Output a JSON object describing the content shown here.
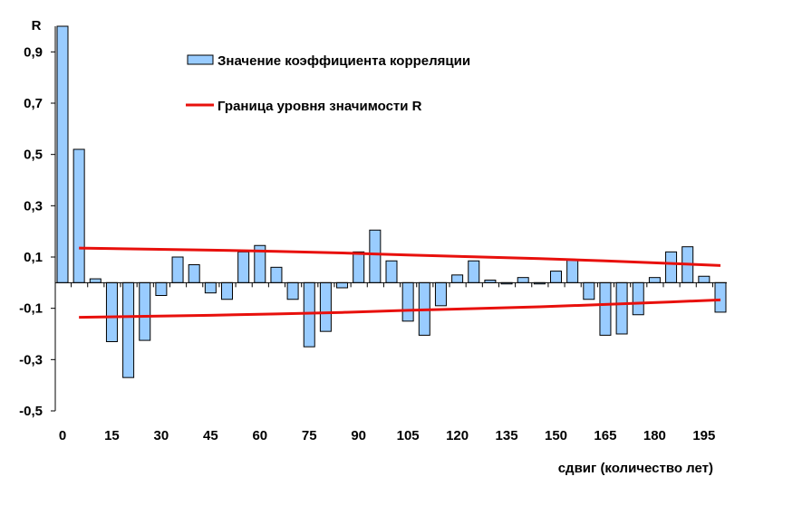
{
  "chart_data": {
    "type": "bar",
    "ylabel": "R",
    "xlabel": "сдвиг (количество лет)",
    "ylim": [
      -0.5,
      1.0
    ],
    "y_ticks": [
      {
        "value": 0.9,
        "label": "0,9"
      },
      {
        "value": 0.7,
        "label": "0,7"
      },
      {
        "value": 0.5,
        "label": "0,5"
      },
      {
        "value": 0.3,
        "label": "0,3"
      },
      {
        "value": 0.1,
        "label": "0,1"
      },
      {
        "value": -0.1,
        "label": "-0,1"
      },
      {
        "value": -0.3,
        "label": "-0,3"
      },
      {
        "value": -0.5,
        "label": "-0,5"
      }
    ],
    "x_ticks": [
      "0",
      "15",
      "30",
      "45",
      "60",
      "75",
      "90",
      "105",
      "120",
      "135",
      "150",
      "165",
      "180",
      "195"
    ],
    "x_step": 5,
    "grid": false,
    "legend_placement": "top-center",
    "bar_series": {
      "name": "Значение коэффициента корреляции",
      "color": "#99ccff",
      "stroke": "#000000",
      "x": [
        0,
        5,
        10,
        15,
        20,
        25,
        30,
        35,
        40,
        45,
        50,
        55,
        60,
        65,
        70,
        75,
        80,
        85,
        90,
        95,
        100,
        105,
        110,
        115,
        120,
        125,
        130,
        135,
        140,
        145,
        150,
        155,
        160,
        165,
        170,
        175,
        180,
        185,
        190,
        195,
        200
      ],
      "values": [
        1.0,
        0.52,
        0.015,
        -0.23,
        -0.37,
        -0.225,
        -0.05,
        0.1,
        0.07,
        -0.04,
        -0.065,
        0.12,
        0.145,
        0.06,
        -0.065,
        -0.25,
        -0.19,
        -0.02,
        0.12,
        0.205,
        0.085,
        -0.15,
        -0.205,
        -0.09,
        0.03,
        0.085,
        0.01,
        -0.005,
        0.02,
        -0.005,
        0.045,
        0.09,
        -0.065,
        -0.205,
        -0.2,
        -0.125,
        0.02,
        0.12,
        0.14,
        0.025,
        -0.115
      ]
    },
    "line_series": [
      {
        "name": "Граница уровня значимости R",
        "color": "#e8100c",
        "x": [
          5,
          25,
          45,
          65,
          85,
          105,
          125,
          145,
          165,
          185,
          200
        ],
        "values": [
          0.135,
          0.131,
          0.127,
          0.122,
          0.116,
          0.108,
          0.101,
          0.094,
          0.085,
          0.075,
          0.067
        ]
      },
      {
        "name": "",
        "color": "#e8100c",
        "x": [
          5,
          25,
          45,
          65,
          85,
          105,
          125,
          145,
          165,
          185,
          200
        ],
        "values": [
          -0.135,
          -0.131,
          -0.127,
          -0.122,
          -0.116,
          -0.108,
          -0.101,
          -0.094,
          -0.085,
          -0.075,
          -0.067
        ]
      }
    ]
  }
}
